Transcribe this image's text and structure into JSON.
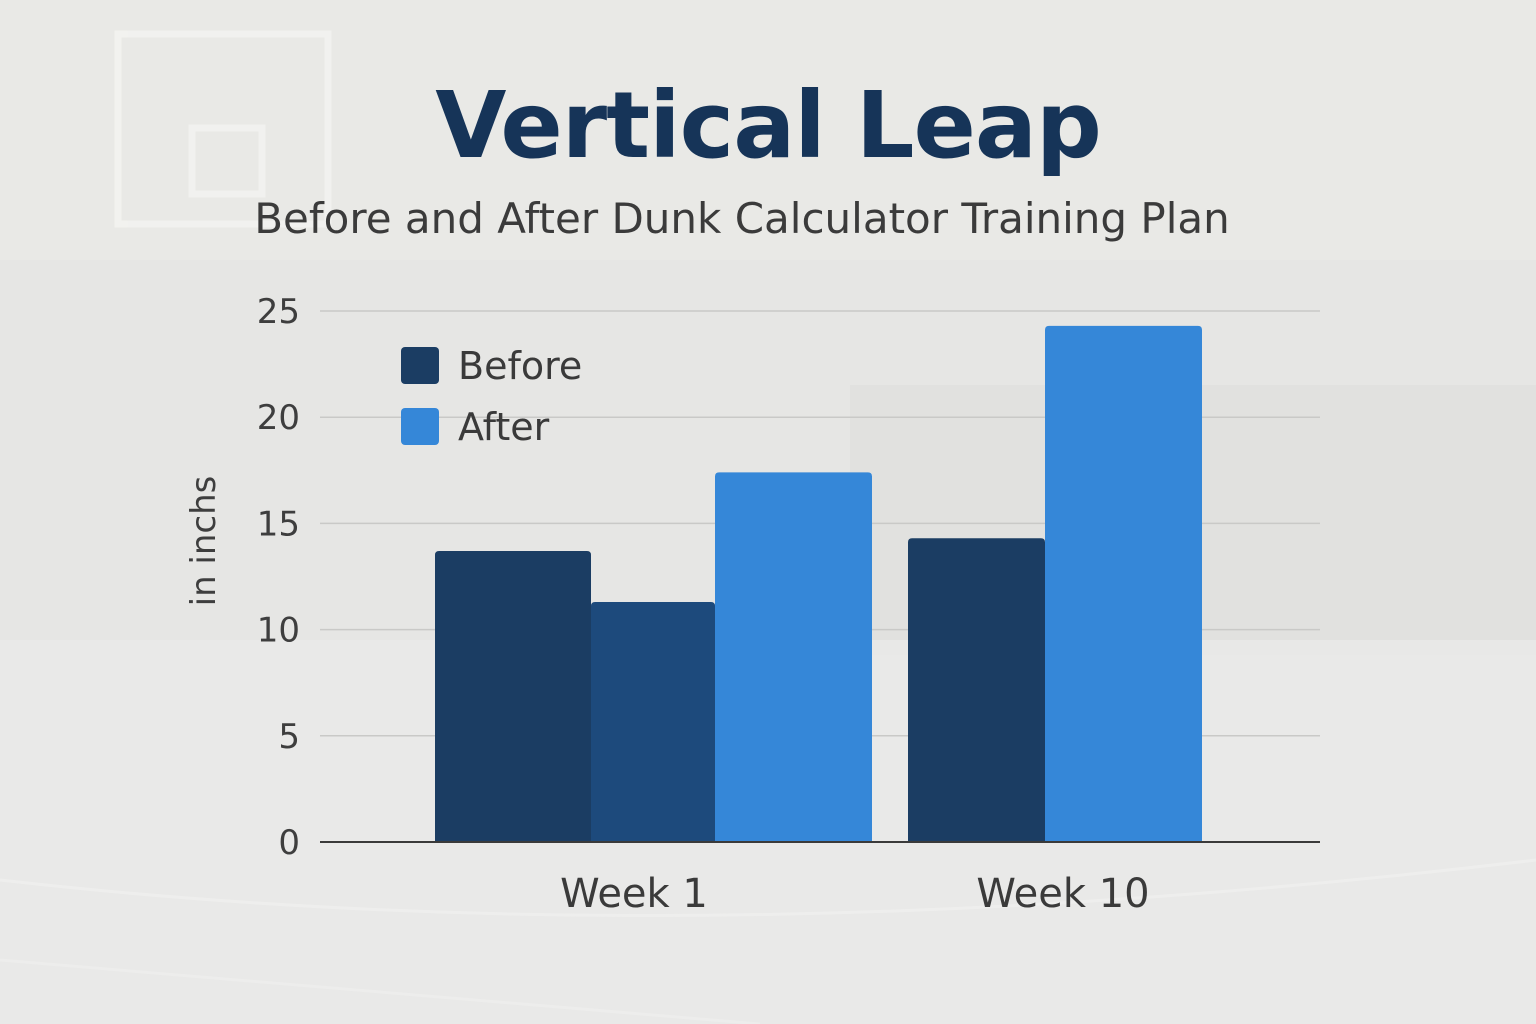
{
  "chart_data": {
    "type": "bar",
    "title": "Vertical Leap",
    "subtitle": "Before and After Dunk Calculator Training Plan",
    "ylabel": "in inchs",
    "xlabel": "",
    "ylim": [
      0,
      25
    ],
    "yticks": [
      "0",
      "5",
      "10",
      "15",
      "20",
      "25"
    ],
    "grid": true,
    "legend_position": "top-left",
    "categories": [
      "Week 1",
      "Week 10"
    ],
    "series": [
      {
        "name": "Before",
        "color": "#1b3d63",
        "values": [
          13.7,
          14.3
        ]
      },
      {
        "name": "",
        "color": "#1d4a7c",
        "values": [
          11.3,
          null
        ]
      },
      {
        "name": "After",
        "color": "#3587d8",
        "values": [
          17.4,
          24.3
        ]
      }
    ]
  }
}
